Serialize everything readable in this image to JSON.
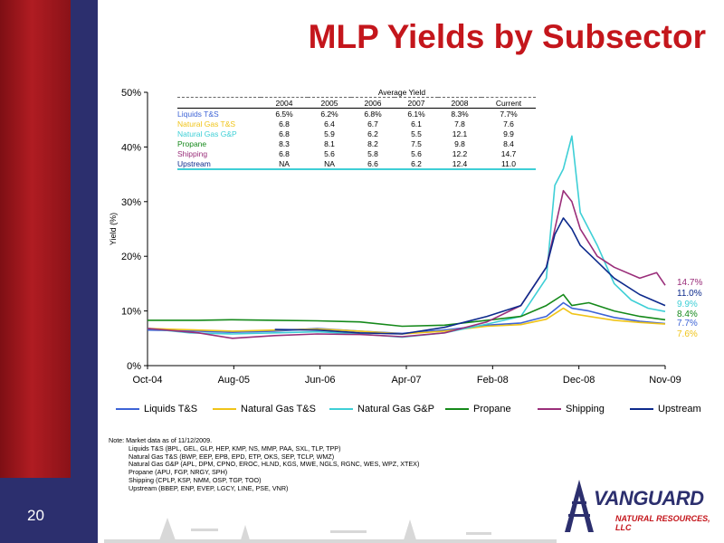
{
  "slide": {
    "title": "MLP Yields by Subsector",
    "page_number": "20"
  },
  "brand": {
    "logo_name": "VANGUARD",
    "logo_sub": "NATURAL RESOURCES, LLC",
    "primary_color": "#2c2f6e",
    "accent_color": "#c4161c"
  },
  "table": {
    "caption": "Average Yield",
    "headers": [
      "",
      "2004",
      "2005",
      "2006",
      "2007",
      "2008",
      "Current"
    ],
    "rows": [
      {
        "label": "Liquids T&S",
        "color": "#3d63d6",
        "values": [
          "6.5%",
          "6.2%",
          "6.8%",
          "6.1%",
          "8.3%",
          "7.7%"
        ]
      },
      {
        "label": "Natural  Gas T&S",
        "color": "#f0c419",
        "values": [
          "6.8",
          "6.4",
          "6.7",
          "6.1",
          "7.8",
          "7.6"
        ]
      },
      {
        "label": "Natural Gas G&P",
        "color": "#3ecfd6",
        "values": [
          "6.8",
          "5.9",
          "6.2",
          "5.5",
          "12.1",
          "9.9"
        ]
      },
      {
        "label": "Propane",
        "color": "#15891a",
        "values": [
          "8.3",
          "8.1",
          "8.2",
          "7.5",
          "9.8",
          "8.4"
        ]
      },
      {
        "label": "Shipping",
        "color": "#9a2e7a",
        "values": [
          "6.8",
          "5.6",
          "5.8",
          "5.6",
          "12.2",
          "14.7"
        ]
      },
      {
        "label": "Upstream",
        "color": "#0d2a8c",
        "values": [
          "NA",
          "NA",
          "6.6",
          "6.2",
          "12.4",
          "11.0"
        ]
      }
    ]
  },
  "chart_data": {
    "type": "line",
    "ylabel": "Yield (%)",
    "xlabel": "",
    "title": "",
    "ylim": [
      0,
      50
    ],
    "xlim": [
      "2004-10",
      "2009-11"
    ],
    "x_ticks": [
      "Oct-04",
      "Aug-05",
      "Jun-06",
      "Apr-07",
      "Feb-08",
      "Dec-08",
      "Nov-09"
    ],
    "y_ticks": [
      "0%",
      "10%",
      "20%",
      "30%",
      "40%",
      "50%"
    ],
    "grid": false,
    "legend_position": "bottom",
    "series": [
      {
        "name": "Liquids T&S",
        "color": "#3d63d6",
        "end_label": "7.7%",
        "points": [
          [
            "2004-10",
            6.5
          ],
          [
            "2005-04",
            6.3
          ],
          [
            "2005-08",
            6.1
          ],
          [
            "2006-01",
            6.3
          ],
          [
            "2006-06",
            6.8
          ],
          [
            "2006-11",
            6.3
          ],
          [
            "2007-04",
            5.9
          ],
          [
            "2007-09",
            6.5
          ],
          [
            "2008-02",
            7.4
          ],
          [
            "2008-06",
            7.8
          ],
          [
            "2008-09",
            9.0
          ],
          [
            "2008-11",
            11.5
          ],
          [
            "2008-12",
            10.5
          ],
          [
            "2009-02",
            10.0
          ],
          [
            "2009-05",
            8.8
          ],
          [
            "2009-08",
            8.1
          ],
          [
            "2009-11",
            7.7
          ]
        ]
      },
      {
        "name": "Natural  Gas T&S",
        "color": "#f0c419",
        "end_label": "7.6%",
        "points": [
          [
            "2004-10",
            6.8
          ],
          [
            "2005-04",
            6.5
          ],
          [
            "2005-08",
            6.3
          ],
          [
            "2006-01",
            6.5
          ],
          [
            "2006-06",
            6.7
          ],
          [
            "2006-11",
            6.3
          ],
          [
            "2007-04",
            5.8
          ],
          [
            "2007-09",
            6.3
          ],
          [
            "2008-02",
            7.2
          ],
          [
            "2008-06",
            7.5
          ],
          [
            "2008-09",
            8.5
          ],
          [
            "2008-11",
            10.5
          ],
          [
            "2008-12",
            9.5
          ],
          [
            "2009-02",
            9.0
          ],
          [
            "2009-05",
            8.3
          ],
          [
            "2009-08",
            7.9
          ],
          [
            "2009-11",
            7.6
          ]
        ]
      },
      {
        "name": "Natural Gas G&P",
        "color": "#3ecfd6",
        "end_label": "9.9%",
        "points": [
          [
            "2004-10",
            6.8
          ],
          [
            "2005-03",
            6.0
          ],
          [
            "2005-08",
            5.8
          ],
          [
            "2006-01",
            6.0
          ],
          [
            "2006-06",
            6.2
          ],
          [
            "2006-11",
            5.8
          ],
          [
            "2007-04",
            5.2
          ],
          [
            "2007-09",
            6.0
          ],
          [
            "2008-02",
            7.6
          ],
          [
            "2008-06",
            9.0
          ],
          [
            "2008-09",
            16.0
          ],
          [
            "2008-10",
            33.0
          ],
          [
            "2008-11",
            36.0
          ],
          [
            "2008-12",
            42.0
          ],
          [
            "2009-01",
            28.0
          ],
          [
            "2009-03",
            22.0
          ],
          [
            "2009-05",
            15.0
          ],
          [
            "2009-07",
            12.0
          ],
          [
            "2009-09",
            10.5
          ],
          [
            "2009-11",
            9.9
          ]
        ]
      },
      {
        "name": "Propane",
        "color": "#15891a",
        "end_label": "8.4%",
        "points": [
          [
            "2004-10",
            8.3
          ],
          [
            "2005-04",
            8.3
          ],
          [
            "2005-08",
            8.4
          ],
          [
            "2006-01",
            8.3
          ],
          [
            "2006-06",
            8.2
          ],
          [
            "2006-11",
            8.0
          ],
          [
            "2007-04",
            7.2
          ],
          [
            "2007-09",
            7.4
          ],
          [
            "2008-02",
            8.3
          ],
          [
            "2008-06",
            9.0
          ],
          [
            "2008-09",
            11.0
          ],
          [
            "2008-11",
            13.0
          ],
          [
            "2008-12",
            11.0
          ],
          [
            "2009-02",
            11.5
          ],
          [
            "2009-05",
            10.0
          ],
          [
            "2009-08",
            9.0
          ],
          [
            "2009-11",
            8.4
          ]
        ]
      },
      {
        "name": "Shipping",
        "color": "#9a2e7a",
        "end_label": "14.7%",
        "points": [
          [
            "2004-10",
            6.8
          ],
          [
            "2005-04",
            6.0
          ],
          [
            "2005-08",
            5.0
          ],
          [
            "2006-01",
            5.5
          ],
          [
            "2006-06",
            5.8
          ],
          [
            "2006-11",
            5.7
          ],
          [
            "2007-04",
            5.3
          ],
          [
            "2007-09",
            6.0
          ],
          [
            "2008-02",
            8.0
          ],
          [
            "2008-06",
            11.0
          ],
          [
            "2008-09",
            18.0
          ],
          [
            "2008-10",
            25.0
          ],
          [
            "2008-11",
            32.0
          ],
          [
            "2008-12",
            30.0
          ],
          [
            "2009-01",
            25.0
          ],
          [
            "2009-03",
            20.0
          ],
          [
            "2009-05",
            18.0
          ],
          [
            "2009-08",
            16.0
          ],
          [
            "2009-10",
            17.0
          ],
          [
            "2009-11",
            14.7
          ]
        ]
      },
      {
        "name": "Upstream",
        "color": "#0d2a8c",
        "end_label": "11.0%",
        "points": [
          [
            "2006-01",
            6.6
          ],
          [
            "2006-06",
            6.5
          ],
          [
            "2006-11",
            6.0
          ],
          [
            "2007-04",
            5.8
          ],
          [
            "2007-09",
            7.0
          ],
          [
            "2008-02",
            9.0
          ],
          [
            "2008-06",
            11.0
          ],
          [
            "2008-09",
            18.0
          ],
          [
            "2008-10",
            24.0
          ],
          [
            "2008-11",
            27.0
          ],
          [
            "2008-12",
            25.0
          ],
          [
            "2009-01",
            22.0
          ],
          [
            "2009-03",
            19.0
          ],
          [
            "2009-05",
            16.0
          ],
          [
            "2009-08",
            13.0
          ],
          [
            "2009-11",
            11.0
          ]
        ]
      }
    ]
  },
  "notes": {
    "header": "Note: Market data as of 11/12/2009.",
    "lines": [
      "Liquids T&S (BPL, GEL, GLP, HEP, KMP, NS, MMP, PAA, SXL, TLP, TPP)",
      "Natural Gas T&S (BWP, EEP, EPB, EPD, ETP, OKS, SEP, TCLP, WMZ)",
      "Natural Gas G&P (APL, DPM, CPNO, EROC, HLND, KGS, MWE, NGLS, RGNC, WES, WPZ, XTEX)",
      "Propane (APU, FGP, NRGY, SPH)",
      "Shipping (CPLP, KSP, NMM, OSP, TGP, TOO)",
      "Upstream (BBEP, ENP, EVEP, LGCY, LINE, PSE, VNR)"
    ]
  }
}
